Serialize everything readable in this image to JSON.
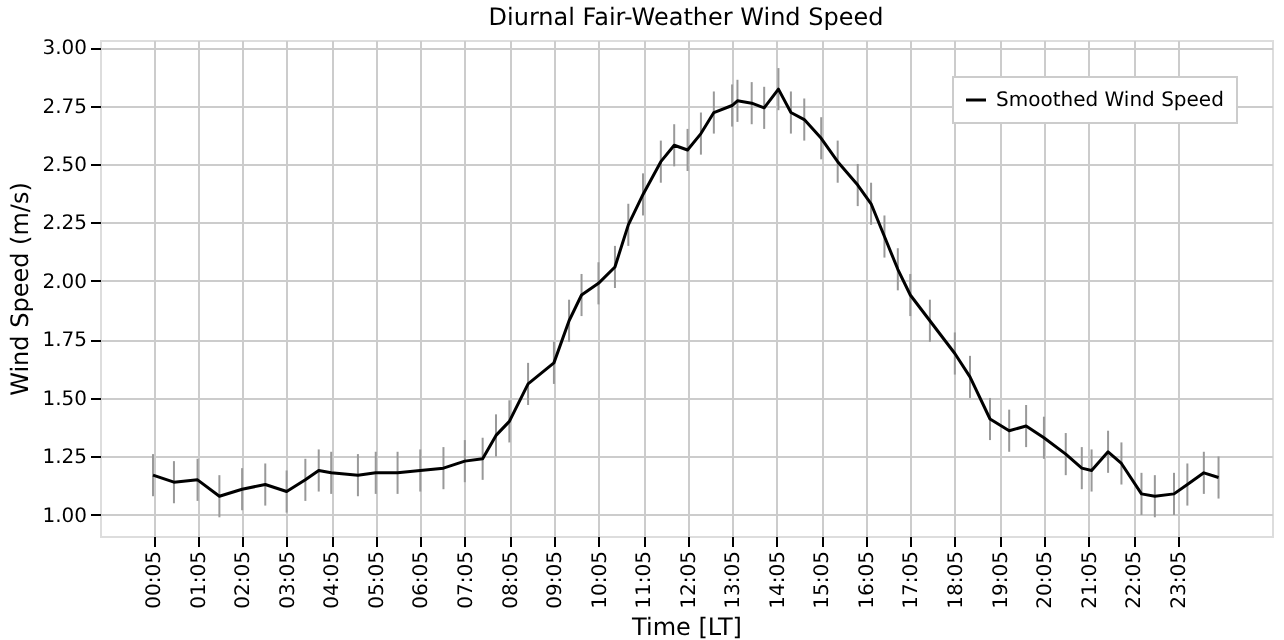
{
  "chart_data": {
    "type": "line",
    "title": "Diurnal Fair-Weather Wind Speed",
    "xlabel": "Time [LT]",
    "ylabel": "Wind Speed (m/s)",
    "x": [
      0.08,
      0.55,
      1.08,
      1.57,
      2.08,
      2.6,
      3.08,
      3.5,
      3.8,
      4.08,
      4.68,
      5.08,
      5.57,
      6.08,
      6.6,
      7.08,
      7.48,
      7.78,
      8.08,
      8.5,
      9.08,
      9.42,
      9.7,
      10.08,
      10.45,
      10.75,
      11.08,
      11.48,
      11.78,
      12.08,
      12.38,
      12.67,
      13.08,
      13.2,
      13.52,
      13.8,
      14.12,
      14.4,
      14.7,
      15.08,
      15.45,
      15.9,
      16.2,
      16.5,
      16.8,
      17.08,
      17.52,
      18.08,
      18.42,
      18.87,
      19.3,
      19.68,
      20.08,
      20.57,
      20.93,
      21.15,
      21.52,
      21.82,
      22.27,
      22.57,
      23.0,
      23.3,
      23.67,
      24.0
    ],
    "series": [
      {
        "name": "Smoothed Wind Speed",
        "color": "#000000",
        "values": [
          1.17,
          1.14,
          1.15,
          1.08,
          1.11,
          1.13,
          1.1,
          1.15,
          1.19,
          1.18,
          1.17,
          1.18,
          1.18,
          1.19,
          1.2,
          1.23,
          1.24,
          1.34,
          1.4,
          1.56,
          1.65,
          1.83,
          1.94,
          1.99,
          2.06,
          2.24,
          2.37,
          2.51,
          2.58,
          2.56,
          2.63,
          2.72,
          2.75,
          2.77,
          2.76,
          2.74,
          2.82,
          2.72,
          2.69,
          2.61,
          2.51,
          2.41,
          2.33,
          2.19,
          2.05,
          1.94,
          1.83,
          1.69,
          1.59,
          1.41,
          1.36,
          1.38,
          1.33,
          1.26,
          1.2,
          1.19,
          1.27,
          1.22,
          1.09,
          1.08,
          1.09,
          1.13,
          1.18,
          1.16
        ],
        "errors": [
          0.09,
          0.09,
          0.09,
          0.09,
          0.09,
          0.09,
          0.09,
          0.09,
          0.09,
          0.09,
          0.09,
          0.09,
          0.09,
          0.09,
          0.09,
          0.09,
          0.09,
          0.09,
          0.09,
          0.09,
          0.09,
          0.09,
          0.09,
          0.09,
          0.09,
          0.09,
          0.09,
          0.09,
          0.09,
          0.09,
          0.09,
          0.09,
          0.09,
          0.09,
          0.09,
          0.09,
          0.09,
          0.09,
          0.09,
          0.09,
          0.09,
          0.09,
          0.09,
          0.09,
          0.09,
          0.09,
          0.09,
          0.09,
          0.09,
          0.09,
          0.09,
          0.09,
          0.09,
          0.09,
          0.09,
          0.09,
          0.09,
          0.09,
          0.09,
          0.09,
          0.09,
          0.09,
          0.09,
          0.09
        ]
      }
    ],
    "xlim": [
      -1.11,
      25.2
    ],
    "ylim": [
      0.91,
      3.03
    ],
    "xticks": [
      {
        "value": 0.0833,
        "label": "00:05"
      },
      {
        "value": 1.0833,
        "label": "01:05"
      },
      {
        "value": 2.0833,
        "label": "02:05"
      },
      {
        "value": 3.0833,
        "label": "03:05"
      },
      {
        "value": 4.0833,
        "label": "04:05"
      },
      {
        "value": 5.0833,
        "label": "05:05"
      },
      {
        "value": 6.0833,
        "label": "06:05"
      },
      {
        "value": 7.0833,
        "label": "07:05"
      },
      {
        "value": 8.0833,
        "label": "08:05"
      },
      {
        "value": 9.0833,
        "label": "09:05"
      },
      {
        "value": 10.0833,
        "label": "10:05"
      },
      {
        "value": 11.0833,
        "label": "11:05"
      },
      {
        "value": 12.0833,
        "label": "12:05"
      },
      {
        "value": 13.0833,
        "label": "13:05"
      },
      {
        "value": 14.0833,
        "label": "14:05"
      },
      {
        "value": 15.0833,
        "label": "15:05"
      },
      {
        "value": 16.0833,
        "label": "16:05"
      },
      {
        "value": 17.0833,
        "label": "17:05"
      },
      {
        "value": 18.0833,
        "label": "18:05"
      },
      {
        "value": 19.0833,
        "label": "19:05"
      },
      {
        "value": 20.0833,
        "label": "20:05"
      },
      {
        "value": 21.0833,
        "label": "21:05"
      },
      {
        "value": 22.0833,
        "label": "22:05"
      },
      {
        "value": 23.0833,
        "label": "23:05"
      }
    ],
    "yticks": [
      {
        "value": 1.0,
        "label": "1.00"
      },
      {
        "value": 1.25,
        "label": "1.25"
      },
      {
        "value": 1.5,
        "label": "1.50"
      },
      {
        "value": 1.75,
        "label": "1.75"
      },
      {
        "value": 2.0,
        "label": "2.00"
      },
      {
        "value": 2.25,
        "label": "2.25"
      },
      {
        "value": 2.5,
        "label": "2.50"
      },
      {
        "value": 2.75,
        "label": "2.75"
      },
      {
        "value": 3.0,
        "label": "3.00"
      }
    ],
    "grid": true,
    "legend": "top right",
    "marker": "none",
    "line_style": "solid"
  }
}
